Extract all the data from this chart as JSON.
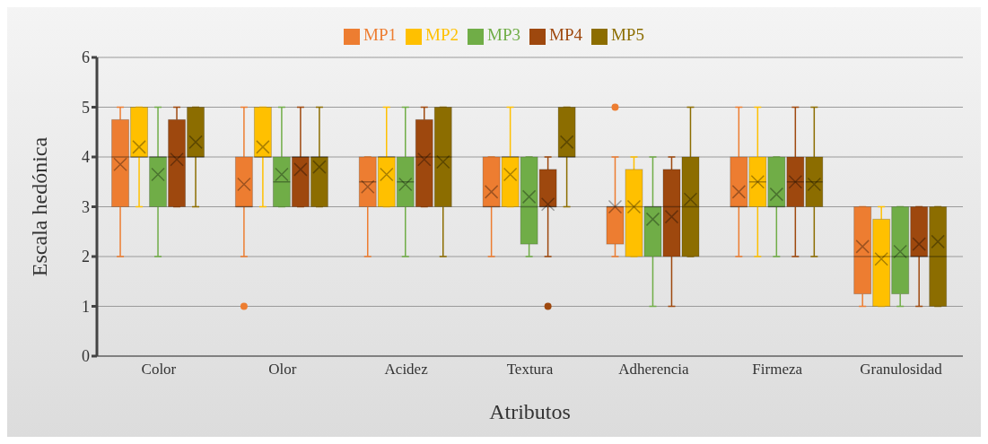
{
  "chart_data": {
    "type": "box",
    "xlabel": "Atributos",
    "ylabel": "Escala hedónica",
    "categories": [
      "Color",
      "Olor",
      "Acidez",
      "Textura",
      "Adherencia",
      "Firmeza",
      "Granulosidad"
    ],
    "ylim": [
      0,
      6
    ],
    "yticks": [
      0,
      1,
      2,
      3,
      4,
      5,
      6
    ],
    "grid": "y",
    "legend": "top",
    "series": [
      {
        "name": "MP1",
        "color": "#ed7d31",
        "boxes": [
          {
            "low": 2,
            "q1": 3,
            "median": 4,
            "q3": 4.75,
            "high": 5,
            "mean": 3.85
          },
          {
            "low": 2,
            "q1": 3,
            "median": 3,
            "q3": 4,
            "high": 5,
            "mean": 3.45,
            "outliers": [
              1
            ]
          },
          {
            "low": 2,
            "q1": 3,
            "median": 3.5,
            "q3": 4,
            "high": 4,
            "mean": 3.4
          },
          {
            "low": 2,
            "q1": 3,
            "median": 3,
            "q3": 4,
            "high": 4,
            "mean": 3.3
          },
          {
            "low": 2,
            "q1": 2.25,
            "median": 3,
            "q3": 3,
            "high": 4,
            "mean": 3,
            "outliers": [
              5
            ]
          },
          {
            "low": 2,
            "q1": 3,
            "median": 3,
            "q3": 4,
            "high": 5,
            "mean": 3.3
          },
          {
            "low": 1,
            "q1": 1.25,
            "median": 2,
            "q3": 3,
            "high": 3,
            "mean": 2.2
          }
        ]
      },
      {
        "name": "MP2",
        "color": "#ffc000",
        "boxes": [
          {
            "low": 3,
            "q1": 4,
            "median": 4,
            "q3": 5,
            "high": 5,
            "mean": 4.2
          },
          {
            "low": 3,
            "q1": 4,
            "median": 4,
            "q3": 5,
            "high": 5,
            "mean": 4.2
          },
          {
            "low": 3,
            "q1": 3,
            "median": 4,
            "q3": 4,
            "high": 5,
            "mean": 3.65
          },
          {
            "low": 3,
            "q1": 3,
            "median": 4,
            "q3": 4,
            "high": 5,
            "mean": 3.65
          },
          {
            "low": 2,
            "q1": 2,
            "median": 3,
            "q3": 3.75,
            "high": 4,
            "mean": 3
          },
          {
            "low": 2,
            "q1": 3,
            "median": 3.5,
            "q3": 4,
            "high": 5,
            "mean": 3.5
          },
          {
            "low": 1,
            "q1": 1,
            "median": 2,
            "q3": 2.75,
            "high": 3,
            "mean": 1.95
          }
        ]
      },
      {
        "name": "MP3",
        "color": "#70ad47",
        "boxes": [
          {
            "low": 2,
            "q1": 3,
            "median": 4,
            "q3": 4,
            "high": 5,
            "mean": 3.65
          },
          {
            "low": 3,
            "q1": 3,
            "median": 3.5,
            "q3": 4,
            "high": 5,
            "mean": 3.65
          },
          {
            "low": 2,
            "q1": 3,
            "median": 3.5,
            "q3": 4,
            "high": 5,
            "mean": 3.45
          },
          {
            "low": 2,
            "q1": 2.25,
            "median": 3,
            "q3": 4,
            "high": 4,
            "mean": 3.2
          },
          {
            "low": 1,
            "q1": 2,
            "median": 3,
            "q3": 3,
            "high": 4,
            "mean": 2.75
          },
          {
            "low": 2,
            "q1": 3,
            "median": 3,
            "q3": 4,
            "high": 4,
            "mean": 3.25
          },
          {
            "low": 1,
            "q1": 1.25,
            "median": 2,
            "q3": 3,
            "high": 3,
            "mean": 2.1
          }
        ]
      },
      {
        "name": "MP4",
        "color": "#9e480e",
        "boxes": [
          {
            "low": 3,
            "q1": 3,
            "median": 4,
            "q3": 4.75,
            "high": 5,
            "mean": 3.95
          },
          {
            "low": 3,
            "q1": 3,
            "median": 4,
            "q3": 4,
            "high": 5,
            "mean": 3.75
          },
          {
            "low": 3,
            "q1": 3,
            "median": 4,
            "q3": 4.75,
            "high": 5,
            "mean": 3.95
          },
          {
            "low": 2,
            "q1": 3,
            "median": 3,
            "q3": 3.75,
            "high": 4,
            "mean": 3.05,
            "outliers": [
              1
            ]
          },
          {
            "low": 1,
            "q1": 2,
            "median": 3,
            "q3": 3.75,
            "high": 4,
            "mean": 2.8
          },
          {
            "low": 2,
            "q1": 3,
            "median": 3.5,
            "q3": 4,
            "high": 5,
            "mean": 3.5
          },
          {
            "low": 1,
            "q1": 2,
            "median": 2,
            "q3": 3,
            "high": 3,
            "mean": 2.25
          }
        ]
      },
      {
        "name": "MP5",
        "color": "#8c6d00",
        "boxes": [
          {
            "low": 3,
            "q1": 4,
            "median": 4,
            "q3": 5,
            "high": 5,
            "mean": 4.3
          },
          {
            "low": 3,
            "q1": 3,
            "median": 4,
            "q3": 4,
            "high": 5,
            "mean": 3.8
          },
          {
            "low": 2,
            "q1": 3,
            "median": 4,
            "q3": 5,
            "high": 5,
            "mean": 3.9
          },
          {
            "low": 3,
            "q1": 4,
            "median": 4,
            "q3": 5,
            "high": 5,
            "mean": 4.3
          },
          {
            "low": 2,
            "q1": 2,
            "median": 3,
            "q3": 4,
            "high": 5,
            "mean": 3.15
          },
          {
            "low": 2,
            "q1": 3,
            "median": 3.5,
            "q3": 4,
            "high": 5,
            "mean": 3.45
          },
          {
            "low": 1,
            "q1": 1,
            "median": 2,
            "q3": 3,
            "high": 3,
            "mean": 2.3
          }
        ]
      }
    ]
  }
}
